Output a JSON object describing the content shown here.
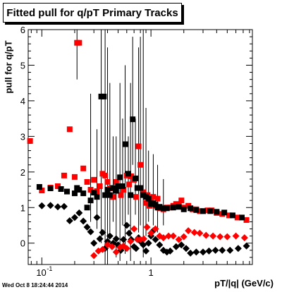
{
  "title": "Fitted pull for q/pT  Primary Tracks",
  "timestamp": "Wed Oct  8 18:24:44 2014",
  "chart_data": {
    "type": "scatter",
    "title": "Fitted pull for q/pT  Primary Tracks",
    "xlabel": "pT/|q| (GeV/c)",
    "ylabel": "pull for q/pT",
    "xscale": "log",
    "xlim": [
      0.075,
      8.5
    ],
    "ylim": [
      -0.6,
      6
    ],
    "x_tick_labels": [
      "10^-1",
      "1"
    ],
    "y_tick_labels": [
      "0",
      "1",
      "2",
      "3",
      "4",
      "5",
      "6"
    ],
    "grid": false,
    "series": [
      {
        "color": "#ff0000",
        "marker": "square",
        "points": [
          [
            0.078,
            2.87
          ],
          [
            0.1,
            1.48
          ],
          [
            0.12,
            1.56
          ],
          [
            0.14,
            1.6
          ],
          [
            0.16,
            1.9
          ],
          [
            0.18,
            3.2
          ],
          [
            0.2,
            1.86
          ],
          [
            0.21,
            5.63
          ],
          [
            0.22,
            5.63
          ],
          [
            0.24,
            2.1
          ],
          [
            0.26,
            1.72
          ],
          [
            0.28,
            1.5
          ],
          [
            0.3,
            1.78
          ],
          [
            0.32,
            1.46
          ],
          [
            0.34,
            1.6
          ],
          [
            0.36,
            1.95
          ],
          [
            0.38,
            1.9
          ],
          [
            0.4,
            1.72
          ],
          [
            0.42,
            1.54
          ],
          [
            0.45,
            1.3
          ],
          [
            0.48,
            1.72
          ],
          [
            0.5,
            1.6
          ],
          [
            0.53,
            1.35
          ],
          [
            0.56,
            1.5
          ],
          [
            0.6,
            1.9
          ],
          [
            0.63,
            1.65
          ],
          [
            0.66,
            1.88
          ],
          [
            0.7,
            1.78
          ],
          [
            0.73,
            1.3
          ],
          [
            0.77,
            2.72
          ],
          [
            0.8,
            2.2
          ],
          [
            0.85,
            1.43
          ],
          [
            0.9,
            1.13
          ],
          [
            0.93,
            1.35
          ],
          [
            0.97,
            1.05
          ],
          [
            1.0,
            1.15
          ],
          [
            1.05,
            1.3
          ],
          [
            1.1,
            1.05
          ],
          [
            1.15,
            1.25
          ],
          [
            1.2,
            0.98
          ],
          [
            1.3,
            0.95
          ],
          [
            1.4,
            1.0
          ],
          [
            1.5,
            1.0
          ],
          [
            1.6,
            1.05
          ],
          [
            1.7,
            1.1
          ],
          [
            1.8,
            1.05
          ],
          [
            1.9,
            1.2
          ],
          [
            2.0,
            1.0
          ],
          [
            2.2,
            1.05
          ],
          [
            2.4,
            0.95
          ],
          [
            2.6,
            0.95
          ],
          [
            2.8,
            0.9
          ],
          [
            3.0,
            0.9
          ],
          [
            3.3,
            0.92
          ],
          [
            3.6,
            0.92
          ],
          [
            4.0,
            0.85
          ],
          [
            4.5,
            0.82
          ],
          [
            5.2,
            0.78
          ],
          [
            6.2,
            0.72
          ],
          [
            7.5,
            0.65
          ]
        ]
      },
      {
        "color": "#000000",
        "marker": "square",
        "points": [
          [
            0.095,
            1.58
          ],
          [
            0.12,
            1.54
          ],
          [
            0.15,
            1.52
          ],
          [
            0.17,
            1.45
          ],
          [
            0.2,
            1.4
          ],
          [
            0.21,
            1.55
          ],
          [
            0.22,
            1.5
          ],
          [
            0.24,
            1.4
          ],
          [
            0.26,
            1.0
          ],
          [
            0.28,
            1.2
          ],
          [
            0.3,
            1.42
          ],
          [
            0.32,
            1.3
          ],
          [
            0.35,
            4.12
          ],
          [
            0.37,
            4.12
          ],
          [
            0.38,
            1.35
          ],
          [
            0.4,
            1.5
          ],
          [
            0.42,
            1.35
          ],
          [
            0.45,
            1.55
          ],
          [
            0.48,
            1.47
          ],
          [
            0.5,
            1.6
          ],
          [
            0.52,
            1.85
          ],
          [
            0.55,
            1.6
          ],
          [
            0.58,
            2.78
          ],
          [
            0.62,
            1.95
          ],
          [
            0.65,
            1.35
          ],
          [
            0.68,
            3.48
          ],
          [
            0.72,
            1.82
          ],
          [
            0.75,
            1.55
          ],
          [
            0.8,
            1.55
          ],
          [
            0.85,
            1.35
          ],
          [
            0.9,
            1.3
          ],
          [
            0.95,
            1.25
          ],
          [
            1.0,
            1.1
          ],
          [
            1.05,
            1.12
          ],
          [
            1.1,
            1.08
          ],
          [
            1.15,
            1.0
          ],
          [
            1.2,
            1.02
          ],
          [
            1.3,
            0.98
          ],
          [
            1.4,
            0.98
          ],
          [
            1.6,
            1.0
          ],
          [
            1.8,
            1.02
          ],
          [
            2.0,
            0.95
          ],
          [
            2.3,
            0.98
          ],
          [
            2.6,
            0.93
          ],
          [
            3.0,
            0.9
          ],
          [
            3.5,
            0.9
          ],
          [
            4.0,
            0.88
          ],
          [
            4.7,
            0.86
          ],
          [
            5.6,
            0.78
          ],
          [
            6.8,
            0.72
          ]
        ]
      },
      {
        "color": "#000000",
        "marker": "diamond",
        "points": [
          [
            0.1,
            1.05
          ],
          [
            0.12,
            1.06
          ],
          [
            0.14,
            1.02
          ],
          [
            0.16,
            1.03
          ],
          [
            0.18,
            0.63
          ],
          [
            0.2,
            0.72
          ],
          [
            0.22,
            0.85
          ],
          [
            0.24,
            0.62
          ],
          [
            0.26,
            0.45
          ],
          [
            0.28,
            0.32
          ],
          [
            0.3,
            0.0
          ],
          [
            0.32,
            0.72
          ],
          [
            0.34,
            0.12
          ],
          [
            0.36,
            0.3
          ],
          [
            0.38,
            -0.15
          ],
          [
            0.4,
            0.05
          ],
          [
            0.42,
            0.2
          ],
          [
            0.45,
            0.0
          ],
          [
            0.48,
            0.12
          ],
          [
            0.5,
            -0.05
          ],
          [
            0.53,
            -0.2
          ],
          [
            0.56,
            0.1
          ],
          [
            0.6,
            0.5
          ],
          [
            0.63,
            0.28
          ],
          [
            0.66,
            0.1
          ],
          [
            0.7,
            -0.1
          ],
          [
            0.73,
            -0.15
          ],
          [
            0.77,
            0.15
          ],
          [
            0.8,
            0.05
          ],
          [
            0.85,
            -0.05
          ],
          [
            0.9,
            -0.22
          ],
          [
            0.95,
            0.0
          ],
          [
            1.0,
            0.2
          ],
          [
            1.05,
            0.35
          ],
          [
            1.1,
            0.1
          ],
          [
            1.2,
            -0.05
          ],
          [
            1.3,
            -0.2
          ],
          [
            1.4,
            -0.25
          ],
          [
            1.5,
            -0.22
          ],
          [
            1.7,
            -0.1
          ],
          [
            1.9,
            -0.05
          ],
          [
            2.1,
            -0.15
          ],
          [
            2.3,
            -0.28
          ],
          [
            2.6,
            -0.25
          ],
          [
            3.0,
            -0.25
          ],
          [
            3.4,
            -0.22
          ],
          [
            3.9,
            -0.2
          ],
          [
            4.5,
            -0.2
          ],
          [
            5.3,
            -0.2
          ],
          [
            6.3,
            -0.15
          ],
          [
            7.5,
            -0.08
          ]
        ]
      },
      {
        "color": "#ff0000",
        "marker": "diamond",
        "points": [
          [
            0.3,
            -0.35
          ],
          [
            0.33,
            -0.22
          ],
          [
            0.36,
            -0.18
          ],
          [
            0.4,
            -0.05
          ],
          [
            0.44,
            -0.1
          ],
          [
            0.48,
            -0.25
          ],
          [
            0.52,
            -0.12
          ],
          [
            0.56,
            -0.08
          ],
          [
            0.6,
            -0.15
          ],
          [
            0.65,
            0.05
          ],
          [
            0.7,
            0.4
          ],
          [
            0.75,
            0.1
          ],
          [
            0.8,
            0.1
          ],
          [
            0.86,
            0.12
          ],
          [
            0.92,
            0.45
          ],
          [
            1.0,
            0.28
          ],
          [
            1.1,
            0.4
          ],
          [
            1.2,
            0.2
          ],
          [
            1.3,
            0.15
          ],
          [
            1.45,
            0.2
          ],
          [
            1.6,
            0.2
          ],
          [
            1.8,
            0.1
          ],
          [
            2.0,
            0.18
          ],
          [
            2.2,
            0.35
          ],
          [
            2.5,
            0.3
          ],
          [
            2.8,
            0.28
          ],
          [
            3.2,
            0.22
          ],
          [
            3.7,
            0.2
          ],
          [
            4.3,
            0.18
          ],
          [
            5.0,
            0.18
          ],
          [
            6.0,
            0.2
          ],
          [
            7.2,
            0.15
          ]
        ]
      }
    ],
    "error_bars": [
      [
        0.21,
        4.6,
        6.0
      ],
      [
        0.28,
        0.6,
        4.2
      ],
      [
        0.32,
        0.4,
        3.2
      ],
      [
        0.35,
        0.0,
        6.0
      ],
      [
        0.38,
        -0.6,
        6.0
      ],
      [
        0.4,
        -0.5,
        5.5
      ],
      [
        0.42,
        0.3,
        4.5
      ],
      [
        0.45,
        0.6,
        3.0
      ],
      [
        0.48,
        -0.4,
        3.0
      ],
      [
        0.52,
        -0.5,
        4.5
      ],
      [
        0.55,
        0.5,
        3.5
      ],
      [
        0.58,
        -0.3,
        5.0
      ],
      [
        0.62,
        0.8,
        3.0
      ],
      [
        0.65,
        -0.5,
        4.5
      ],
      [
        0.68,
        2.2,
        5.8
      ],
      [
        0.72,
        0.8,
        3.5
      ],
      [
        0.77,
        0.3,
        5.5
      ],
      [
        0.8,
        0.5,
        5.8
      ],
      [
        0.85,
        -0.4,
        6.0
      ],
      [
        0.9,
        0.2,
        3.8
      ],
      [
        0.95,
        0.6,
        2.6
      ],
      [
        1.05,
        0.5,
        2.5
      ],
      [
        1.15,
        0.3,
        2.2
      ],
      [
        1.3,
        0.5,
        1.8
      ]
    ]
  }
}
